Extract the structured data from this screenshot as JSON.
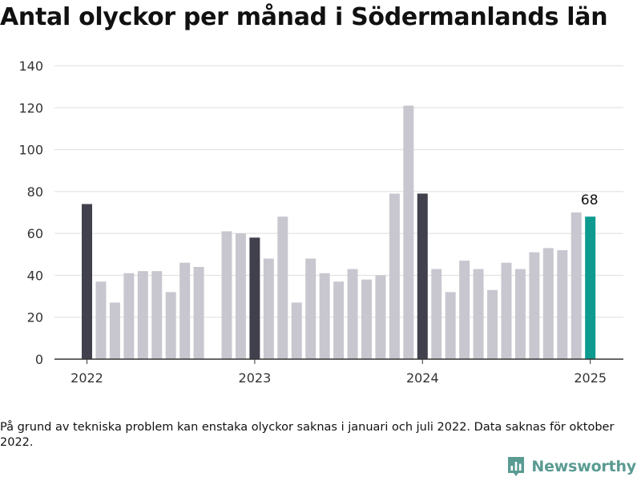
{
  "title": "Antal olyckor per månad i Södermanlands län",
  "footnote": "På grund av tekniska problem kan enstaka olyckor saknas i januari och juli 2022. Data saknas för oktober 2022.",
  "brand": {
    "name": "Newsworthy",
    "icon": "newsworthy-logo-icon",
    "color": "#5a9b92"
  },
  "chart_data": {
    "type": "bar",
    "title": "Antal olyckor per månad i Södermanlands län",
    "xlabel": "",
    "ylabel": "",
    "ylim": [
      0,
      140
    ],
    "yticks": [
      0,
      20,
      40,
      60,
      80,
      100,
      120,
      140
    ],
    "xticks": [
      "2022",
      "2023",
      "2024",
      "2025"
    ],
    "grid": true,
    "legend": "none",
    "colors": {
      "january": "#41404d",
      "default": "#c8c7d0",
      "latest": "#0d9a8f",
      "grid": "#dddddd",
      "axis": "#333333"
    },
    "categories": [
      "2022-01",
      "2022-02",
      "2022-03",
      "2022-04",
      "2022-05",
      "2022-06",
      "2022-07",
      "2022-08",
      "2022-09",
      "2022-10",
      "2022-11",
      "2022-12",
      "2023-01",
      "2023-02",
      "2023-03",
      "2023-04",
      "2023-05",
      "2023-06",
      "2023-07",
      "2023-08",
      "2023-09",
      "2023-10",
      "2023-11",
      "2023-12",
      "2024-01",
      "2024-02",
      "2024-03",
      "2024-04",
      "2024-05",
      "2024-06",
      "2024-07",
      "2024-08",
      "2024-09",
      "2024-10",
      "2024-11",
      "2024-12",
      "2025-01"
    ],
    "values": [
      74,
      37,
      27,
      41,
      42,
      42,
      32,
      46,
      44,
      null,
      61,
      60,
      58,
      48,
      68,
      27,
      48,
      41,
      37,
      43,
      38,
      40,
      79,
      121,
      79,
      43,
      32,
      47,
      43,
      33,
      46,
      43,
      51,
      53,
      52,
      70,
      68
    ],
    "annotations": [
      {
        "category": "2025-01",
        "text": "68"
      }
    ]
  }
}
